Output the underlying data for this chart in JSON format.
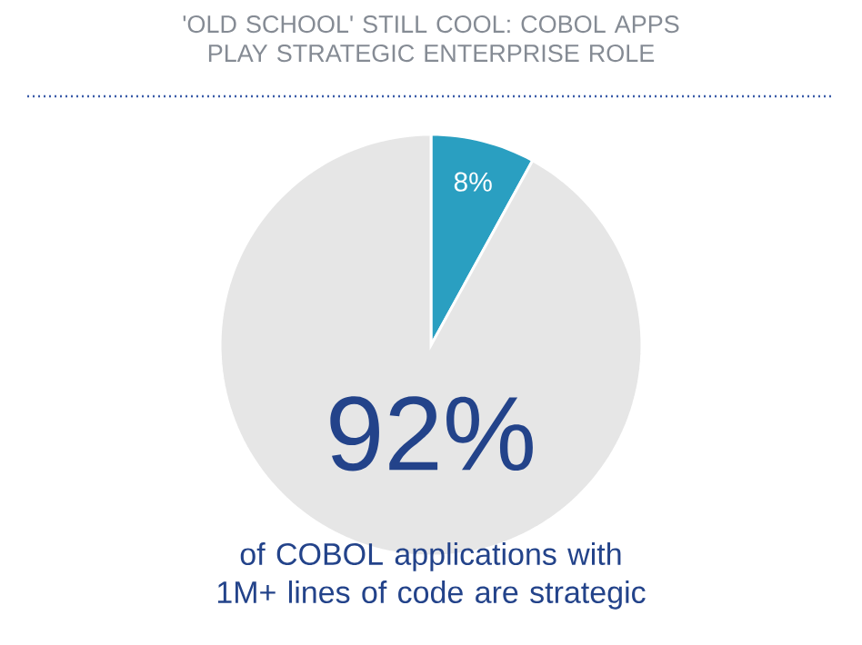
{
  "chart_data": {
    "type": "pie",
    "title": "'OLD SCHOOL' STILL COOL: COBOL APPS PLAY STRATEGIC ENTERPRISE ROLE",
    "categories": [
      null,
      null
    ],
    "values": [
      8,
      92
    ],
    "colors": [
      "#2a9fc1",
      "#e6e6e6"
    ],
    "value_labels": [
      "8%",
      "92%"
    ],
    "annotations": [
      "of COBOL applications with 1M+ lines of code are strategic"
    ]
  }
}
